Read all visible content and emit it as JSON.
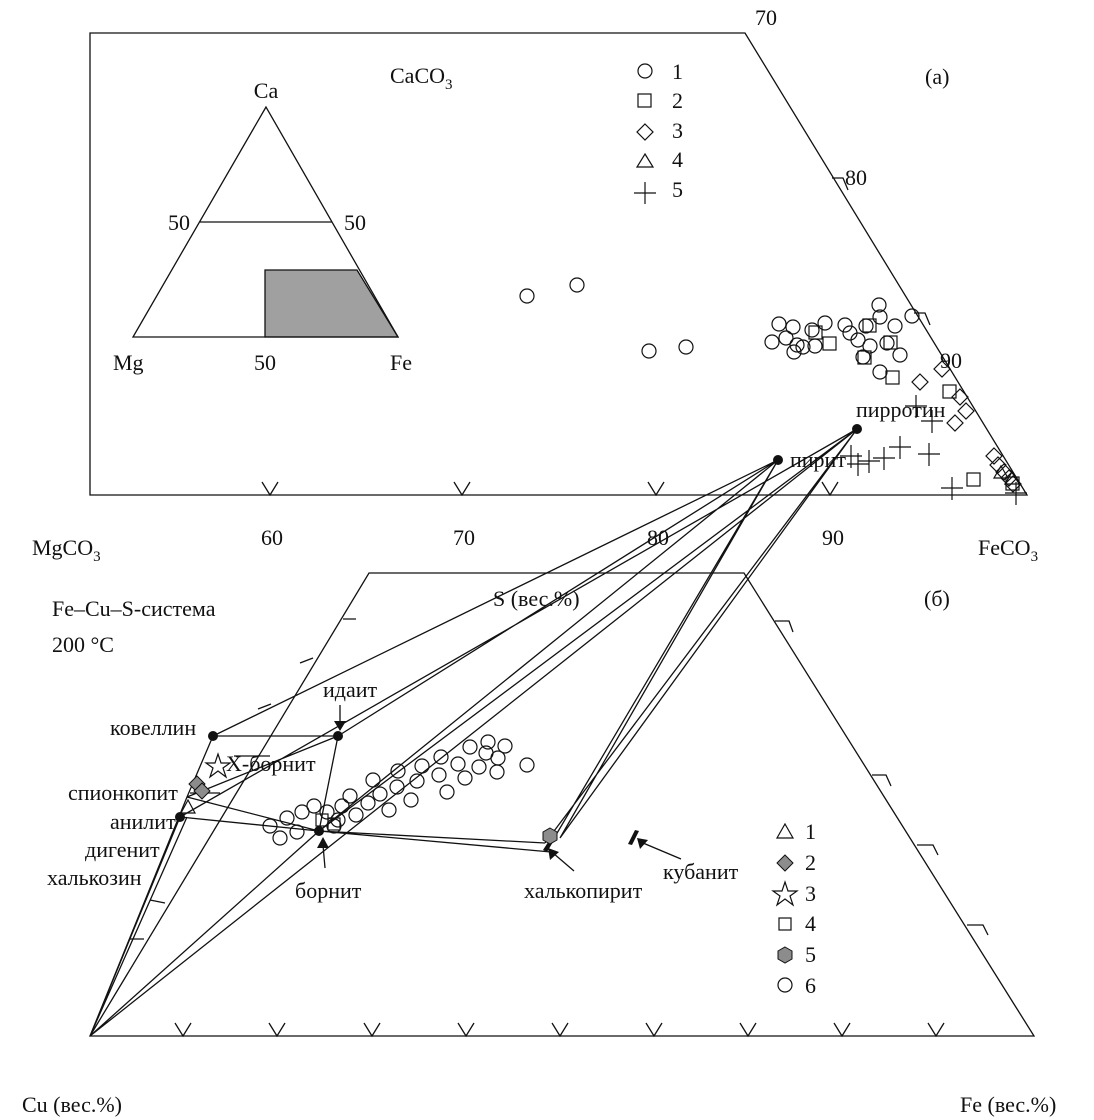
{
  "panel_a": {
    "apex_label": "CaCO",
    "apex_sub": "3",
    "left_label": "MgCO",
    "left_sub": "3",
    "right_label": "FeCO",
    "right_sub": "3",
    "panel_letter": "(a)",
    "bottom_ticks": [
      "60",
      "70",
      "80",
      "90"
    ],
    "side_ticks": [
      "70",
      "80",
      "90"
    ],
    "inset": {
      "top": "Ca",
      "left": "Mg",
      "right": "Fe",
      "bottom_mid": "50",
      "left_mid": "50",
      "right_mid": "50"
    },
    "legend": [
      {
        "symbol": "circle",
        "label": "1"
      },
      {
        "symbol": "square",
        "label": "2"
      },
      {
        "symbol": "diamond",
        "label": "3"
      },
      {
        "symbol": "triangle",
        "label": "4"
      },
      {
        "symbol": "cross",
        "label": "5"
      }
    ]
  },
  "panel_b": {
    "system_label": "Fe–Cu–S-система",
    "temperature_label": "200 °C",
    "top_label": "S (вес.%)",
    "bottom_left_label": "Cu (вес.%)",
    "bottom_right_label": "Fe (вес.%)",
    "panel_letter": "(б)",
    "minerals": {
      "pyrite": "пирит",
      "pyrrhotite": "пирротин",
      "idaite": "идаит",
      "covellite": "ковеллин",
      "x_bornite": "X-борнит",
      "spionkopite": "спионкопит",
      "anilite": "анилит",
      "digenite": "дигенит",
      "chalcocite": "халькозин",
      "bornite": "борнит",
      "chalcopyrite": "халькопирит",
      "cubanite": "кубанит"
    },
    "legend": [
      {
        "symbol": "triangle",
        "label": "1"
      },
      {
        "symbol": "gray-diamond",
        "label": "2"
      },
      {
        "symbol": "star",
        "label": "3"
      },
      {
        "symbol": "square",
        "label": "4"
      },
      {
        "symbol": "gray-hexagon",
        "label": "5"
      },
      {
        "symbol": "circle",
        "label": "6"
      }
    ]
  }
}
